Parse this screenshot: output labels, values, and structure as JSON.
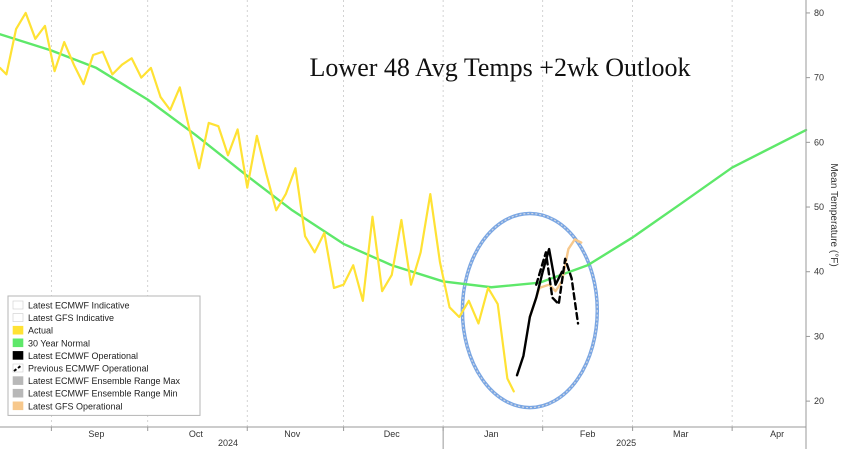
{
  "chart_data": {
    "type": "line",
    "title": "Lower 48 Avg Temps +2wk Outlook",
    "ylabel": "Mean Temperature (°F)",
    "xlabel": "",
    "ylim": [
      16,
      82
    ],
    "yticks": [
      20,
      30,
      40,
      50,
      60,
      70,
      80
    ],
    "xlim": [
      "2024-08-16",
      "2025-04-24"
    ],
    "x_tick_labels": [
      {
        "label": "Sep",
        "date": "2024-09-15"
      },
      {
        "label": "Oct",
        "date": "2024-10-16"
      },
      {
        "label": "Nov",
        "date": "2024-11-15"
      },
      {
        "label": "Dec",
        "date": "2024-12-16"
      },
      {
        "label": "Jan",
        "date": "2025-01-16"
      },
      {
        "label": "Feb",
        "date": "2025-02-15"
      },
      {
        "label": "Mar",
        "date": "2025-03-16"
      },
      {
        "label": "Apr",
        "date": "2025-04-15"
      }
    ],
    "year_labels": [
      {
        "label": "2024",
        "date": "2024-10-26"
      },
      {
        "label": "2025",
        "date": "2025-02-27"
      }
    ],
    "year_boundary": "2025-01-01",
    "month_boundaries": [
      "2024-09-01",
      "2024-10-01",
      "2024-11-01",
      "2024-12-01",
      "2025-01-01",
      "2025-02-01",
      "2025-03-01",
      "2025-04-01"
    ],
    "grid": "vertical-dashed",
    "legend_position": "bottom-left",
    "legend": [
      {
        "label": "Latest ECMWF Indicative",
        "color": "#ffffff"
      },
      {
        "label": "Latest GFS Indicative",
        "color": "#ffffff"
      },
      {
        "label": "Actual",
        "color": "#ffe234"
      },
      {
        "label": "30 Year Normal",
        "color": "#5ee86a"
      },
      {
        "label": "Latest ECMWF Operational",
        "color": "#000000"
      },
      {
        "label": "Previous ECMWF Operational",
        "color": "#000000",
        "dashed": true
      },
      {
        "label": "Latest ECMWF Ensemble Range Max",
        "color": "#b8b8b8"
      },
      {
        "label": "Latest ECMWF Ensemble Range Min",
        "color": "#b8b8b8"
      },
      {
        "label": "Latest GFS Operational",
        "color": "#f7c88c"
      }
    ],
    "series": [
      {
        "name": "30 Year Normal",
        "color": "#5ee86a",
        "points": [
          [
            "2024-08-16",
            76.7
          ],
          [
            "2024-09-01",
            74.2
          ],
          [
            "2024-09-15",
            71.5
          ],
          [
            "2024-10-01",
            66.6
          ],
          [
            "2024-10-16",
            61.1
          ],
          [
            "2024-11-01",
            54.8
          ],
          [
            "2024-11-15",
            49.5
          ],
          [
            "2024-12-01",
            44.3
          ],
          [
            "2024-12-16",
            41.0
          ],
          [
            "2025-01-01",
            38.5
          ],
          [
            "2025-01-16",
            37.6
          ],
          [
            "2025-01-31",
            38.3
          ],
          [
            "2025-02-15",
            41.0
          ],
          [
            "2025-03-01",
            45.3
          ],
          [
            "2025-03-16",
            50.5
          ],
          [
            "2025-04-01",
            56.1
          ],
          [
            "2025-04-24",
            61.9
          ]
        ]
      },
      {
        "name": "Actual",
        "color": "#ffe234",
        "points": [
          [
            "2024-08-16",
            71.5
          ],
          [
            "2024-08-18",
            70.5
          ],
          [
            "2024-08-21",
            77.5
          ],
          [
            "2024-08-24",
            80.0
          ],
          [
            "2024-08-27",
            76.0
          ],
          [
            "2024-08-30",
            78.0
          ],
          [
            "2024-09-02",
            71.0
          ],
          [
            "2024-09-05",
            75.5
          ],
          [
            "2024-09-08",
            72.0
          ],
          [
            "2024-09-11",
            69.0
          ],
          [
            "2024-09-14",
            73.5
          ],
          [
            "2024-09-17",
            74.0
          ],
          [
            "2024-09-20",
            70.5
          ],
          [
            "2024-09-23",
            72.0
          ],
          [
            "2024-09-26",
            73.0
          ],
          [
            "2024-09-29",
            70.0
          ],
          [
            "2024-10-02",
            71.5
          ],
          [
            "2024-10-05",
            67.0
          ],
          [
            "2024-10-08",
            65.0
          ],
          [
            "2024-10-11",
            68.5
          ],
          [
            "2024-10-14",
            62.0
          ],
          [
            "2024-10-17",
            56.0
          ],
          [
            "2024-10-20",
            63.0
          ],
          [
            "2024-10-23",
            62.5
          ],
          [
            "2024-10-26",
            58.0
          ],
          [
            "2024-10-29",
            62.0
          ],
          [
            "2024-11-01",
            53.0
          ],
          [
            "2024-11-04",
            61.0
          ],
          [
            "2024-11-07",
            55.0
          ],
          [
            "2024-11-10",
            49.5
          ],
          [
            "2024-11-13",
            52.0
          ],
          [
            "2024-11-16",
            56.0
          ],
          [
            "2024-11-19",
            45.5
          ],
          [
            "2024-11-22",
            43.0
          ],
          [
            "2024-11-25",
            46.0
          ],
          [
            "2024-11-28",
            37.5
          ],
          [
            "2024-12-01",
            38.0
          ],
          [
            "2024-12-04",
            41.0
          ],
          [
            "2024-12-07",
            35.5
          ],
          [
            "2024-12-10",
            48.5
          ],
          [
            "2024-12-13",
            37.0
          ],
          [
            "2024-12-16",
            39.5
          ],
          [
            "2024-12-19",
            48.0
          ],
          [
            "2024-12-22",
            38.0
          ],
          [
            "2024-12-25",
            43.0
          ],
          [
            "2024-12-28",
            52.0
          ],
          [
            "2024-12-31",
            41.5
          ],
          [
            "2025-01-03",
            34.5
          ],
          [
            "2025-01-06",
            33.0
          ],
          [
            "2025-01-09",
            35.5
          ],
          [
            "2025-01-12",
            32.0
          ],
          [
            "2025-01-15",
            37.5
          ],
          [
            "2025-01-18",
            35.0
          ],
          [
            "2025-01-21",
            23.5
          ],
          [
            "2025-01-23",
            21.5
          ]
        ]
      },
      {
        "name": "Latest ECMWF Operational",
        "color": "#000000",
        "points": [
          [
            "2025-01-24",
            24.0
          ],
          [
            "2025-01-26",
            27.0
          ],
          [
            "2025-01-28",
            33.0
          ],
          [
            "2025-01-30",
            36.0
          ],
          [
            "2025-02-01",
            40.0
          ],
          [
            "2025-02-03",
            43.5
          ],
          [
            "2025-02-05",
            38.0
          ],
          [
            "2025-02-07",
            40.0
          ]
        ]
      },
      {
        "name": "Previous ECMWF Operational",
        "color": "#000000",
        "dashed": true,
        "points": [
          [
            "2025-01-30",
            38.0
          ],
          [
            "2025-02-02",
            43.0
          ],
          [
            "2025-02-04",
            36.0
          ],
          [
            "2025-02-06",
            35.0
          ],
          [
            "2025-02-08",
            42.0
          ],
          [
            "2025-02-10",
            39.0
          ],
          [
            "2025-02-12",
            32.0
          ]
        ]
      },
      {
        "name": "Latest GFS Operational",
        "color": "#f7c88c",
        "points": [
          [
            "2025-01-28",
            33.0
          ],
          [
            "2025-01-31",
            37.5
          ],
          [
            "2025-02-03",
            38.0
          ],
          [
            "2025-02-05",
            37.0
          ],
          [
            "2025-02-07",
            38.5
          ],
          [
            "2025-02-09",
            43.5
          ],
          [
            "2025-02-11",
            45.0
          ],
          [
            "2025-02-13",
            44.5
          ]
        ]
      }
    ],
    "annotation": {
      "type": "ellipse",
      "center": [
        "2025-01-28",
        34.0
      ],
      "date_radius_days": 21,
      "value_radius": 15.0,
      "fill": "#ffffff",
      "stroke": "#7aa6e3"
    }
  }
}
